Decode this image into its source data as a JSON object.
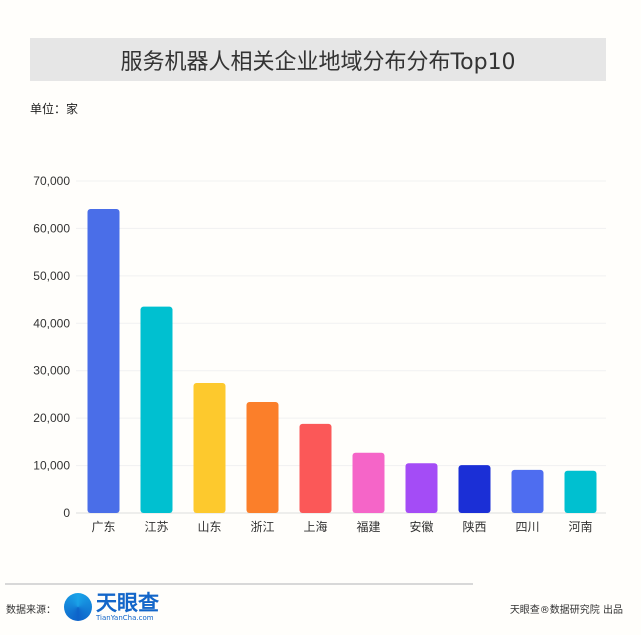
{
  "chart_data": {
    "type": "bar",
    "title": "服务机器人相关企业地域分布分布Top10",
    "unit_label": "单位：家",
    "categories": [
      "广东",
      "江苏",
      "山东",
      "浙江",
      "上海",
      "福建",
      "安徽",
      "陕西",
      "四川",
      "河南"
    ],
    "values": [
      64100,
      43500,
      27400,
      23400,
      18800,
      12700,
      10500,
      10100,
      9100,
      8900
    ],
    "colors": [
      "#4a6ee8",
      "#00c0d0",
      "#fdc92d",
      "#fb7f2a",
      "#fb5858",
      "#f565c8",
      "#a44cf6",
      "#1b2fd6",
      "#4e6df0",
      "#00c0d0"
    ],
    "ylim": [
      0,
      70000
    ],
    "yticks": [
      "0",
      "10,000",
      "20,000",
      "30,000",
      "40,000",
      "50,000",
      "60,000",
      "70,000"
    ],
    "grid": true
  },
  "footer": {
    "source_label": "数据来源：",
    "logo_name": "天眼查",
    "logo_url": "TianYanCha.com",
    "credit": "天眼查®数据研究院 出品"
  }
}
